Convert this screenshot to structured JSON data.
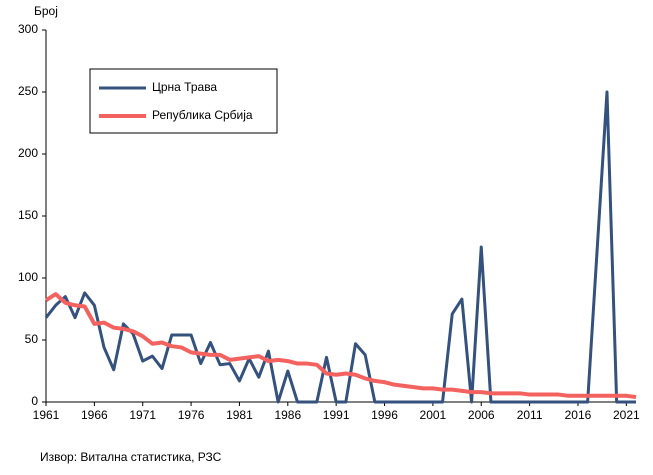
{
  "chart_data": {
    "type": "line",
    "y_label": "Број",
    "source": "Извор: Витална статистика, РЗС",
    "x": [
      1961,
      1962,
      1963,
      1964,
      1965,
      1966,
      1967,
      1968,
      1969,
      1970,
      1971,
      1972,
      1973,
      1974,
      1975,
      1976,
      1977,
      1978,
      1979,
      1980,
      1981,
      1982,
      1983,
      1984,
      1985,
      1986,
      1987,
      1988,
      1989,
      1990,
      1991,
      1992,
      1993,
      1994,
      1995,
      1996,
      1997,
      1998,
      1999,
      2000,
      2001,
      2002,
      2003,
      2004,
      2005,
      2006,
      2007,
      2008,
      2009,
      2010,
      2011,
      2012,
      2013,
      2014,
      2015,
      2016,
      2017,
      2018,
      2019,
      2020,
      2021,
      2022
    ],
    "series": [
      {
        "name": "Црна Трава",
        "color": "#34527d",
        "values": [
          68,
          78,
          85,
          68,
          88,
          78,
          44,
          26,
          63,
          55,
          33,
          37,
          27,
          54,
          54,
          54,
          31,
          48,
          30,
          31,
          17,
          35,
          20,
          41,
          0,
          25,
          0,
          0,
          0,
          36,
          0,
          0,
          47,
          38,
          0,
          0,
          0,
          0,
          0,
          0,
          0,
          0,
          71,
          83,
          0,
          125,
          0,
          0,
          0,
          0,
          0,
          0,
          0,
          0,
          0,
          0,
          0,
          125,
          250,
          0,
          0,
          0
        ]
      },
      {
        "name": "Република Србија",
        "color": "#f4625f",
        "values": [
          82,
          87,
          80,
          78,
          77,
          63,
          64,
          60,
          59,
          57,
          53,
          47,
          48,
          45,
          44,
          40,
          39,
          38,
          38,
          34,
          35,
          36,
          37,
          33,
          34,
          33,
          31,
          31,
          30,
          23,
          22,
          23,
          22,
          19,
          17,
          16,
          14,
          13,
          12,
          11,
          11,
          10,
          10,
          9,
          8,
          8,
          7,
          7,
          7,
          7,
          6,
          6,
          6,
          6,
          5,
          5,
          5,
          5,
          5,
          5,
          5,
          4
        ]
      }
    ],
    "xlim": [
      1961,
      2022
    ],
    "xticks": [
      1961,
      1966,
      1971,
      1976,
      1981,
      1986,
      1991,
      1996,
      2001,
      2006,
      2011,
      2016,
      2021
    ],
    "ylim": [
      0,
      300
    ],
    "yticks": [
      0,
      50,
      100,
      150,
      200,
      250,
      300
    ],
    "grid": false
  }
}
